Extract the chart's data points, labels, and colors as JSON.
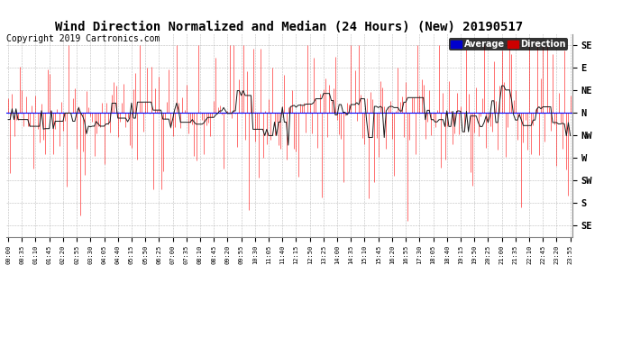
{
  "title": "Wind Direction Normalized and Median (24 Hours) (New) 20190517",
  "copyright": "Copyright 2019 Cartronics.com",
  "ytick_labels": [
    "SE",
    "E",
    "NE",
    "N",
    "NW",
    "W",
    "SW",
    "S",
    "SE"
  ],
  "ytick_values": [
    8,
    7,
    6,
    5,
    4,
    3,
    2,
    1,
    0
  ],
  "ylim": [
    -0.5,
    8.5
  ],
  "n_points": 288,
  "red_color": "#FF0000",
  "dark_color": "#1a1a1a",
  "blue_line_color": "#0000FF",
  "blue_legend": "#0000CC",
  "red_legend": "#CC0000",
  "grid_color": "#AAAAAA",
  "background_color": "#FFFFFF",
  "title_fontsize": 10,
  "copyright_fontsize": 7,
  "legend_fontsize": 7,
  "seed": 42,
  "base_value": 5.0,
  "noise_std": 1.3,
  "n_big_spikes": 50,
  "blue_line_y": 5.0,
  "xtick_step": 7
}
